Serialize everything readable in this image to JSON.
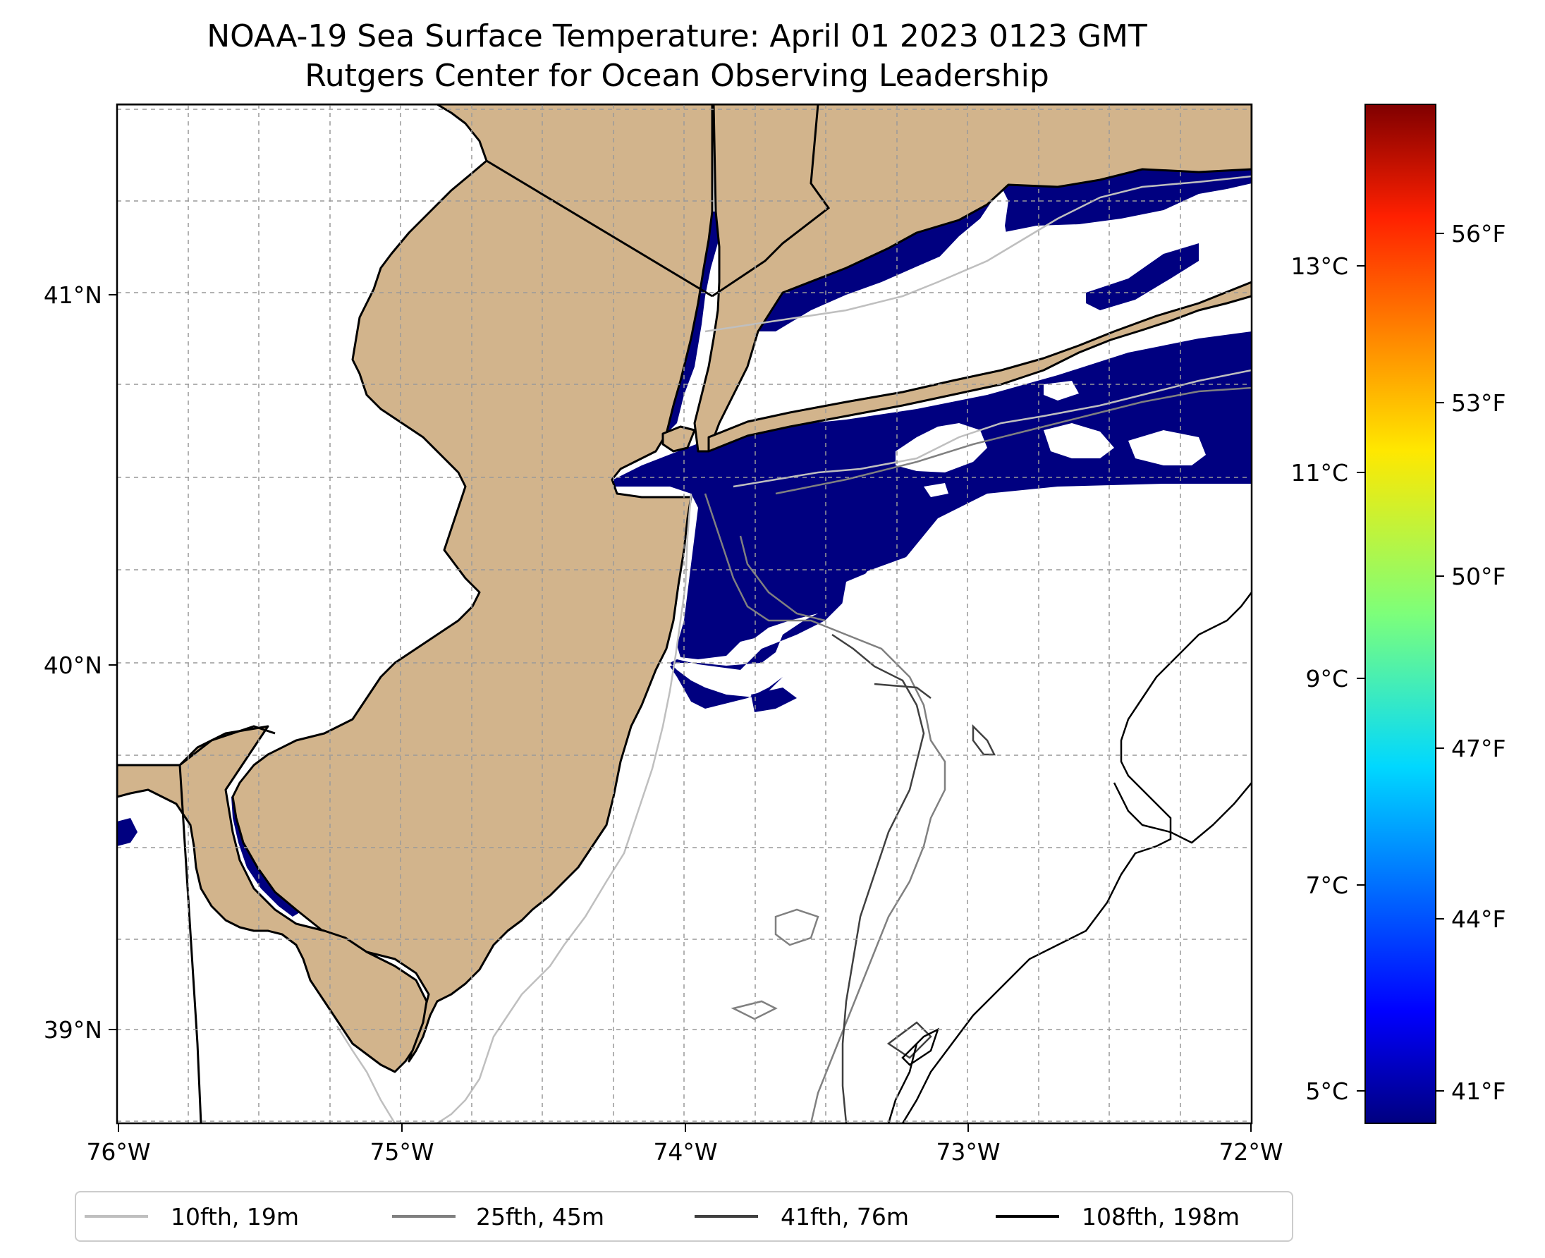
{
  "title": {
    "line1": "NOAA-19 Sea Surface Temperature: April 01 2023 0123 GMT",
    "line2": "Rutgers Center for Ocean Observing Leadership"
  },
  "map": {
    "x_ticks": [
      "76°W",
      "75°W",
      "74°W",
      "73°W",
      "72°W"
    ],
    "y_ticks": [
      "41°N",
      "40°N",
      "39°N"
    ],
    "land_color": "#d2b48c",
    "sst_color": "#000080",
    "ocean_color": "#ffffff"
  },
  "colorbar": {
    "celsius_ticks": [
      "13°C",
      "11°C",
      "9°C",
      "7°C",
      "5°C"
    ],
    "fahrenheit_ticks": [
      "56°F",
      "53°F",
      "50°F",
      "47°F",
      "44°F",
      "41°F"
    ],
    "colormap": "jet"
  },
  "legend": {
    "items": [
      {
        "label": "10fth, 19m",
        "color": "#bfbfbf"
      },
      {
        "label": "25fth, 45m",
        "color": "#808080"
      },
      {
        "label": "41fth, 76m",
        "color": "#404040"
      },
      {
        "label": "108fth, 198m",
        "color": "#000000"
      }
    ]
  }
}
